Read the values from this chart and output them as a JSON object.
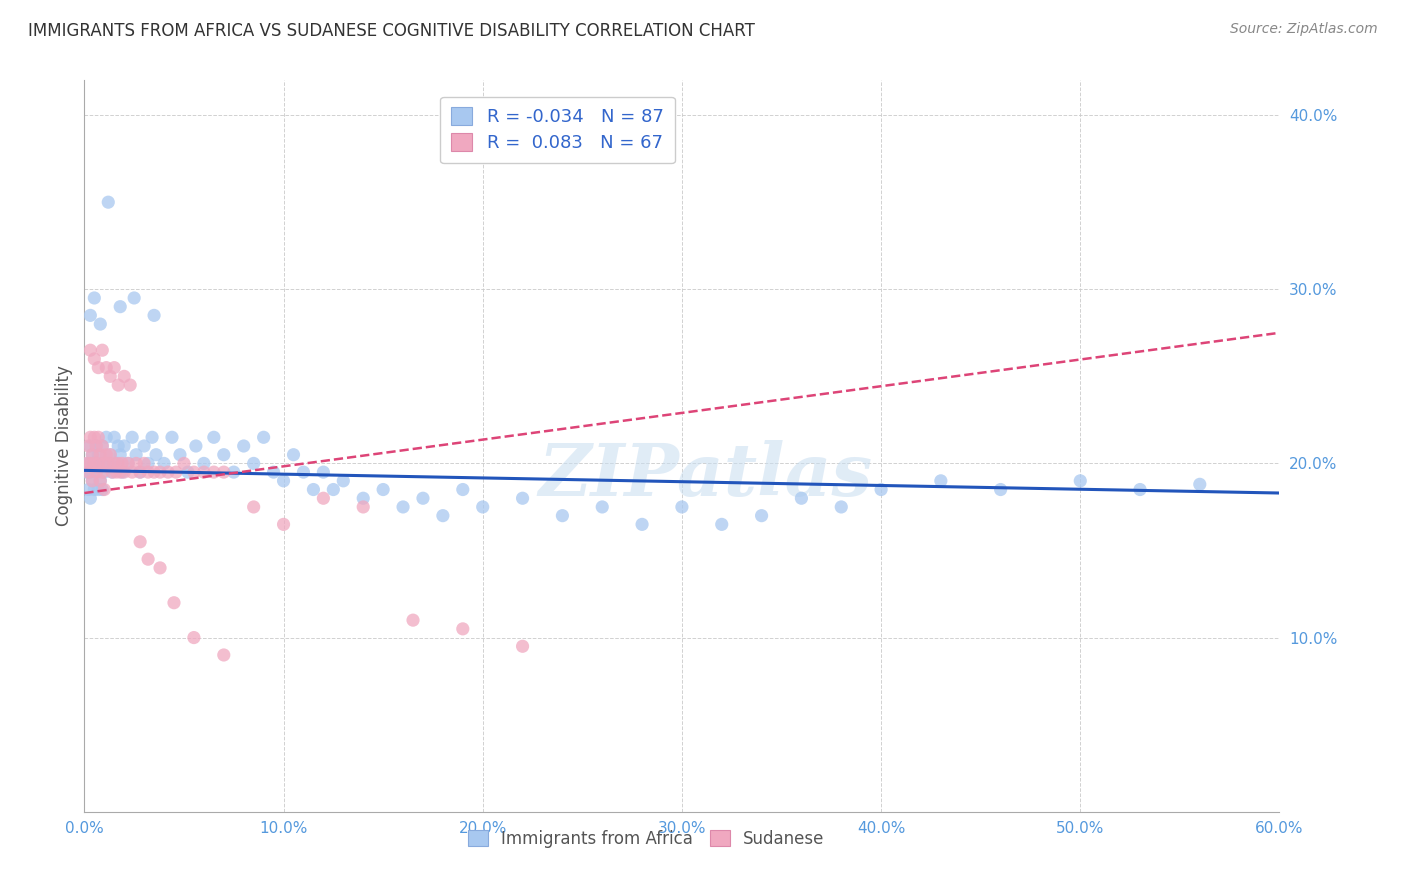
{
  "title": "IMMIGRANTS FROM AFRICA VS SUDANESE COGNITIVE DISABILITY CORRELATION CHART",
  "source": "Source: ZipAtlas.com",
  "ylabel": "Cognitive Disability",
  "xlim": [
    0.0,
    0.6
  ],
  "ylim": [
    0.0,
    0.42
  ],
  "xticks": [
    0.0,
    0.1,
    0.2,
    0.3,
    0.4,
    0.5,
    0.6
  ],
  "yticks": [
    0.1,
    0.2,
    0.3,
    0.4
  ],
  "xticklabels": [
    "0.0%",
    "10.0%",
    "20.0%",
    "30.0%",
    "40.0%",
    "50.0%",
    "60.0%"
  ],
  "yticklabels": [
    "10.0%",
    "20.0%",
    "30.0%",
    "40.0%"
  ],
  "R_africa": -0.034,
  "N_africa": 87,
  "R_sudanese": 0.083,
  "N_sudanese": 67,
  "color_africa": "#a8c8f0",
  "color_sudanese": "#f0a8c0",
  "line_color_africa": "#2255bb",
  "line_color_sudanese": "#dd4477",
  "watermark": "ZIPatlas",
  "africa_x": [
    0.001,
    0.002,
    0.002,
    0.003,
    0.003,
    0.003,
    0.004,
    0.004,
    0.005,
    0.005,
    0.006,
    0.006,
    0.007,
    0.007,
    0.008,
    0.008,
    0.009,
    0.009,
    0.01,
    0.01,
    0.011,
    0.012,
    0.013,
    0.014,
    0.015,
    0.016,
    0.017,
    0.018,
    0.019,
    0.02,
    0.022,
    0.024,
    0.026,
    0.028,
    0.03,
    0.032,
    0.034,
    0.036,
    0.04,
    0.044,
    0.048,
    0.052,
    0.056,
    0.06,
    0.065,
    0.07,
    0.075,
    0.08,
    0.085,
    0.09,
    0.095,
    0.1,
    0.105,
    0.11,
    0.115,
    0.12,
    0.125,
    0.13,
    0.14,
    0.15,
    0.16,
    0.17,
    0.18,
    0.19,
    0.2,
    0.22,
    0.24,
    0.26,
    0.28,
    0.3,
    0.32,
    0.34,
    0.36,
    0.38,
    0.4,
    0.43,
    0.46,
    0.5,
    0.53,
    0.56,
    0.003,
    0.005,
    0.008,
    0.012,
    0.018,
    0.025,
    0.035
  ],
  "africa_y": [
    0.195,
    0.2,
    0.185,
    0.21,
    0.195,
    0.18,
    0.205,
    0.19,
    0.2,
    0.185,
    0.21,
    0.195,
    0.205,
    0.185,
    0.2,
    0.19,
    0.21,
    0.185,
    0.2,
    0.195,
    0.215,
    0.2,
    0.205,
    0.195,
    0.215,
    0.2,
    0.21,
    0.205,
    0.195,
    0.21,
    0.2,
    0.215,
    0.205,
    0.195,
    0.21,
    0.2,
    0.215,
    0.205,
    0.2,
    0.215,
    0.205,
    0.195,
    0.21,
    0.2,
    0.215,
    0.205,
    0.195,
    0.21,
    0.2,
    0.215,
    0.195,
    0.19,
    0.205,
    0.195,
    0.185,
    0.195,
    0.185,
    0.19,
    0.18,
    0.185,
    0.175,
    0.18,
    0.17,
    0.185,
    0.175,
    0.18,
    0.17,
    0.175,
    0.165,
    0.175,
    0.165,
    0.17,
    0.18,
    0.175,
    0.185,
    0.19,
    0.185,
    0.19,
    0.185,
    0.188,
    0.285,
    0.295,
    0.28,
    0.35,
    0.29,
    0.295,
    0.285
  ],
  "sudanese_x": [
    0.001,
    0.002,
    0.002,
    0.003,
    0.003,
    0.004,
    0.004,
    0.005,
    0.005,
    0.006,
    0.006,
    0.007,
    0.007,
    0.008,
    0.008,
    0.009,
    0.009,
    0.01,
    0.01,
    0.011,
    0.012,
    0.013,
    0.014,
    0.015,
    0.016,
    0.017,
    0.018,
    0.019,
    0.02,
    0.022,
    0.024,
    0.026,
    0.028,
    0.03,
    0.032,
    0.035,
    0.038,
    0.042,
    0.046,
    0.05,
    0.055,
    0.06,
    0.065,
    0.07,
    0.003,
    0.005,
    0.007,
    0.009,
    0.011,
    0.013,
    0.015,
    0.017,
    0.02,
    0.023,
    0.028,
    0.032,
    0.038,
    0.045,
    0.055,
    0.07,
    0.085,
    0.1,
    0.12,
    0.14,
    0.165,
    0.19,
    0.22
  ],
  "sudanese_y": [
    0.2,
    0.21,
    0.195,
    0.215,
    0.2,
    0.205,
    0.19,
    0.215,
    0.2,
    0.21,
    0.195,
    0.215,
    0.2,
    0.205,
    0.19,
    0.21,
    0.195,
    0.2,
    0.185,
    0.205,
    0.2,
    0.205,
    0.195,
    0.2,
    0.195,
    0.2,
    0.195,
    0.2,
    0.195,
    0.2,
    0.195,
    0.2,
    0.195,
    0.2,
    0.195,
    0.195,
    0.195,
    0.195,
    0.195,
    0.2,
    0.195,
    0.195,
    0.195,
    0.195,
    0.265,
    0.26,
    0.255,
    0.265,
    0.255,
    0.25,
    0.255,
    0.245,
    0.25,
    0.245,
    0.155,
    0.145,
    0.14,
    0.12,
    0.1,
    0.09,
    0.175,
    0.165,
    0.18,
    0.175,
    0.11,
    0.105,
    0.095
  ],
  "africa_line_x": [
    0.0,
    0.6
  ],
  "africa_line_y_start": 0.196,
  "africa_line_y_end": 0.183,
  "sudanese_line_x": [
    0.0,
    0.6
  ],
  "sudanese_line_y_start": 0.183,
  "sudanese_line_y_end": 0.275
}
